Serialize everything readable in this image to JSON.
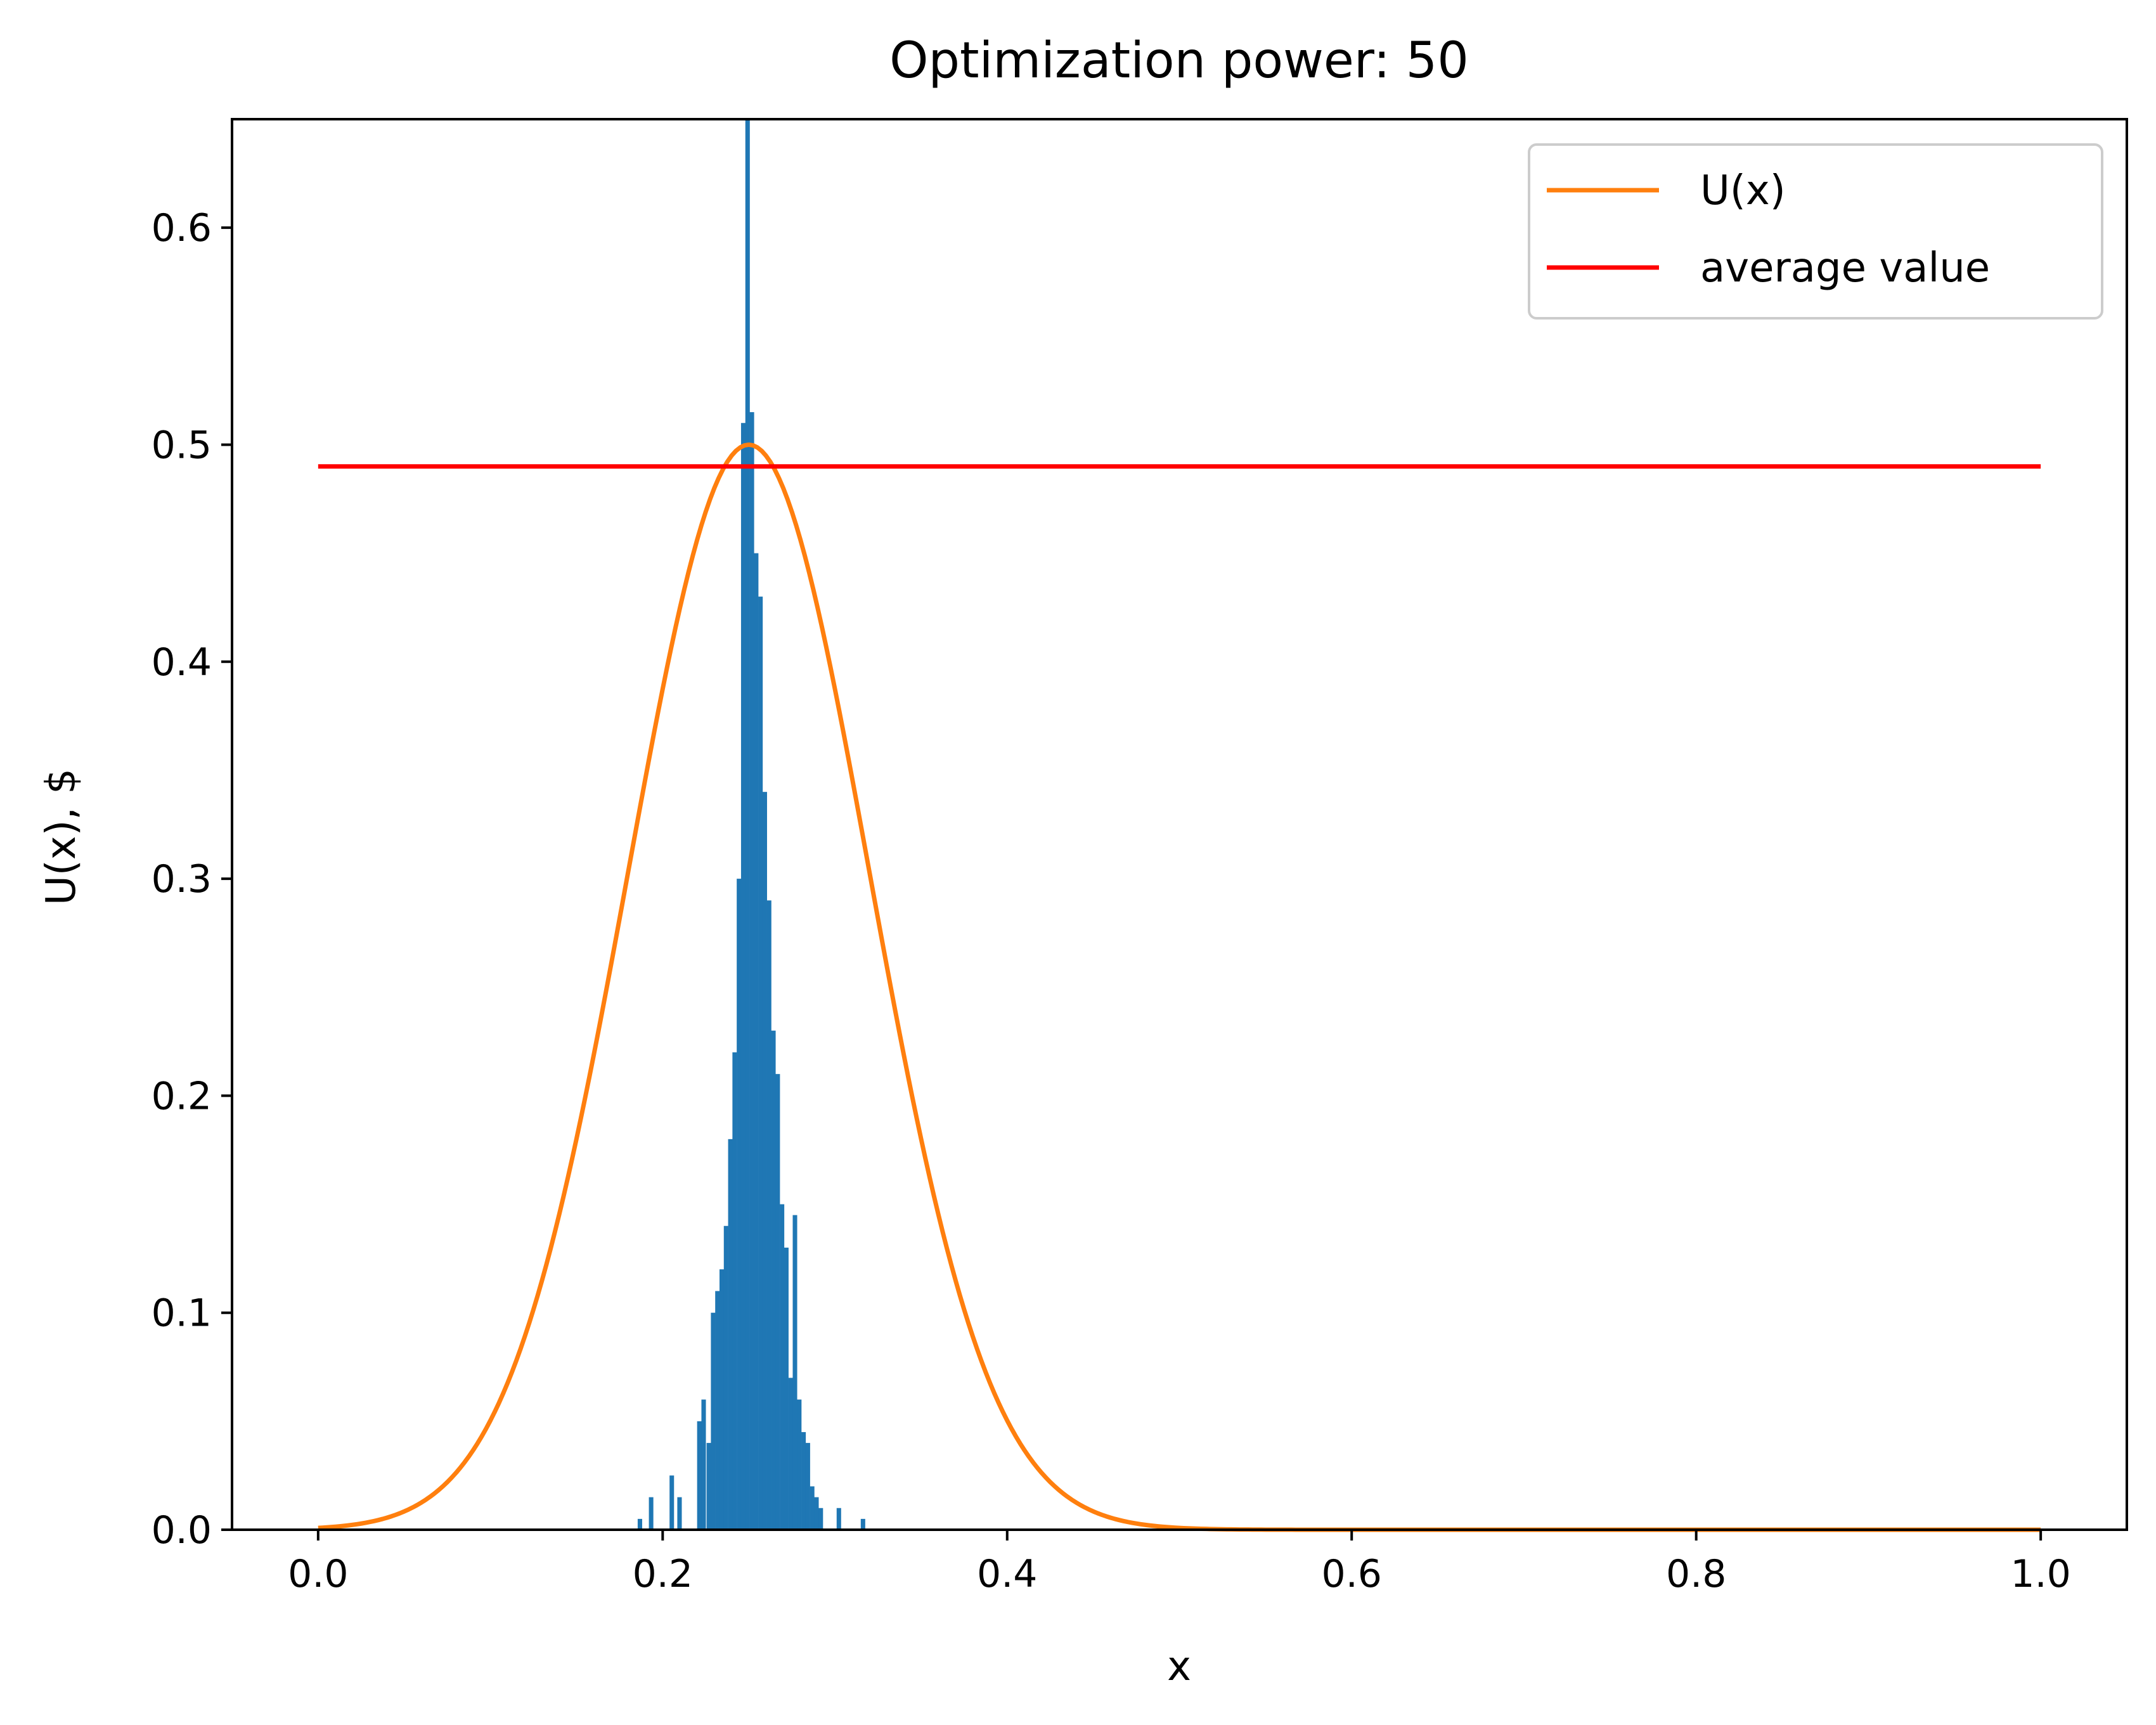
{
  "chart_data": {
    "type": "histogram+line",
    "title": "Optimization power: 50",
    "xlabel": "x",
    "ylabel": "U(x), $",
    "xlim": [
      -0.05,
      1.05
    ],
    "ylim": [
      0.0,
      0.65
    ],
    "xticks": [
      0.0,
      0.2,
      0.4,
      0.6,
      0.8,
      1.0
    ],
    "xtick_labels": [
      "0.0",
      "0.2",
      "0.4",
      "0.6",
      "0.8",
      "1.0"
    ],
    "yticks": [
      0.0,
      0.1,
      0.2,
      0.3,
      0.4,
      0.5,
      0.6
    ],
    "ytick_labels": [
      "0.0",
      "0.1",
      "0.2",
      "0.3",
      "0.4",
      "0.5",
      "0.6"
    ],
    "legend": {
      "position": "top-right",
      "entries": [
        {
          "label": "U(x)",
          "color": "#ff7f0e"
        },
        {
          "label": "average value",
          "color": "#ff0000"
        }
      ]
    },
    "series": [
      {
        "name": "U(x)",
        "kind": "line",
        "color": "#ff7f0e",
        "x": [
          0.0,
          0.025,
          0.05,
          0.075,
          0.1,
          0.125,
          0.15,
          0.175,
          0.2,
          0.225,
          0.25,
          0.275,
          0.3,
          0.325,
          0.35,
          0.375,
          0.4,
          0.425,
          0.45,
          0.475,
          0.5,
          0.55,
          0.6,
          0.7,
          0.8,
          0.9,
          1.0
        ],
        "y": [
          0.002,
          0.006,
          0.018,
          0.043,
          0.092,
          0.165,
          0.26,
          0.357,
          0.441,
          0.489,
          0.5,
          0.489,
          0.441,
          0.357,
          0.26,
          0.165,
          0.092,
          0.043,
          0.018,
          0.006,
          0.002,
          0.0,
          0.0,
          0.0,
          0.0,
          0.0,
          0.0
        ]
      },
      {
        "name": "average value",
        "kind": "line",
        "color": "#ff0000",
        "x": [
          0.0,
          1.0
        ],
        "y": [
          0.49,
          0.49
        ]
      },
      {
        "name": "histogram",
        "kind": "bar",
        "color": "#1f77b4",
        "bin_width": 0.0026,
        "x": [
          0.1855,
          0.192,
          0.204,
          0.2085,
          0.22,
          0.2225,
          0.2255,
          0.228,
          0.2305,
          0.233,
          0.2355,
          0.238,
          0.2405,
          0.243,
          0.2455,
          0.248,
          0.2505,
          0.253,
          0.2555,
          0.258,
          0.2605,
          0.263,
          0.2655,
          0.268,
          0.2705,
          0.273,
          0.2755,
          0.278,
          0.2805,
          0.283,
          0.2855,
          0.288,
          0.2905,
          0.301,
          0.315
        ],
        "values": [
          0.005,
          0.015,
          0.025,
          0.015,
          0.05,
          0.06,
          0.04,
          0.1,
          0.11,
          0.12,
          0.14,
          0.18,
          0.22,
          0.3,
          0.51,
          0.65,
          0.515,
          0.45,
          0.43,
          0.34,
          0.29,
          0.23,
          0.21,
          0.15,
          0.13,
          0.07,
          0.145,
          0.06,
          0.045,
          0.04,
          0.02,
          0.015,
          0.01,
          0.01,
          0.005
        ]
      }
    ]
  }
}
